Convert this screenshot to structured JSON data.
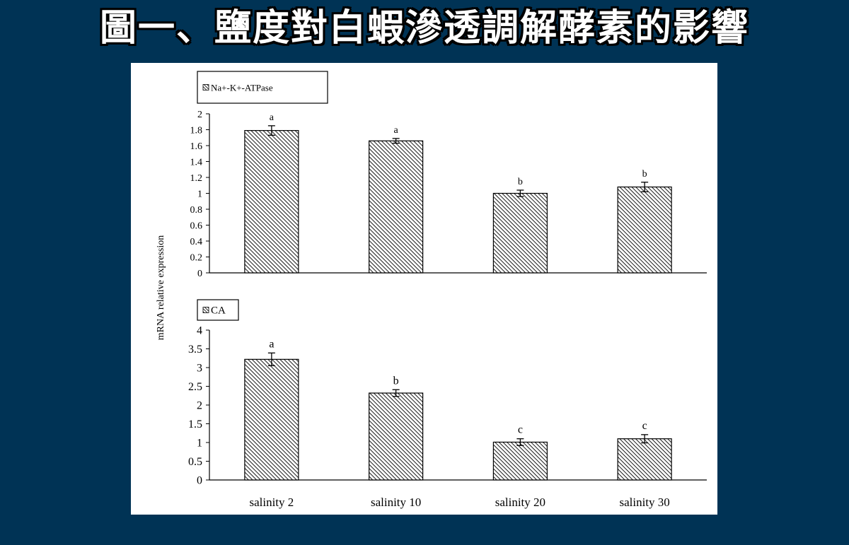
{
  "slide": {
    "title": "圖一、鹽度對白蝦滲透調解酵素的影響"
  },
  "chart_data": {
    "type": "bar",
    "shared_ylabel": "mRNA relative expression",
    "categories": [
      "salinity 2",
      "salinity 10",
      "salinity 20",
      "salinity 30"
    ],
    "panels": [
      {
        "series_name": "Na+-K+-ATPase",
        "legend_position": "top-left",
        "ylim": [
          0,
          2
        ],
        "ticks": [
          "0",
          "0.2",
          "0.4",
          "0.6",
          "0.8",
          "1",
          "1.2",
          "1.4",
          "1.6",
          "1.8",
          "2"
        ],
        "tick_values": [
          0,
          0.2,
          0.4,
          0.6,
          0.8,
          1.0,
          1.2,
          1.4,
          1.6,
          1.8,
          2.0
        ],
        "values": [
          1.79,
          1.66,
          1.0,
          1.08
        ],
        "errors": [
          0.06,
          0.03,
          0.04,
          0.06
        ],
        "significance": [
          "a",
          "a",
          "b",
          "b"
        ],
        "grid": false
      },
      {
        "series_name": "CA",
        "legend_position": "top-left",
        "ylim": [
          0,
          4
        ],
        "ticks": [
          "0",
          "0.5",
          "1",
          "1.5",
          "2",
          "2.5",
          "3",
          "3.5",
          "4"
        ],
        "tick_values": [
          0,
          0.5,
          1.0,
          1.5,
          2.0,
          2.5,
          3.0,
          3.5,
          4.0
        ],
        "values": [
          3.22,
          2.32,
          1.01,
          1.1
        ],
        "errors": [
          0.17,
          0.09,
          0.09,
          0.11
        ],
        "significance": [
          "a",
          "b",
          "c",
          "c"
        ],
        "grid": false
      }
    ]
  }
}
